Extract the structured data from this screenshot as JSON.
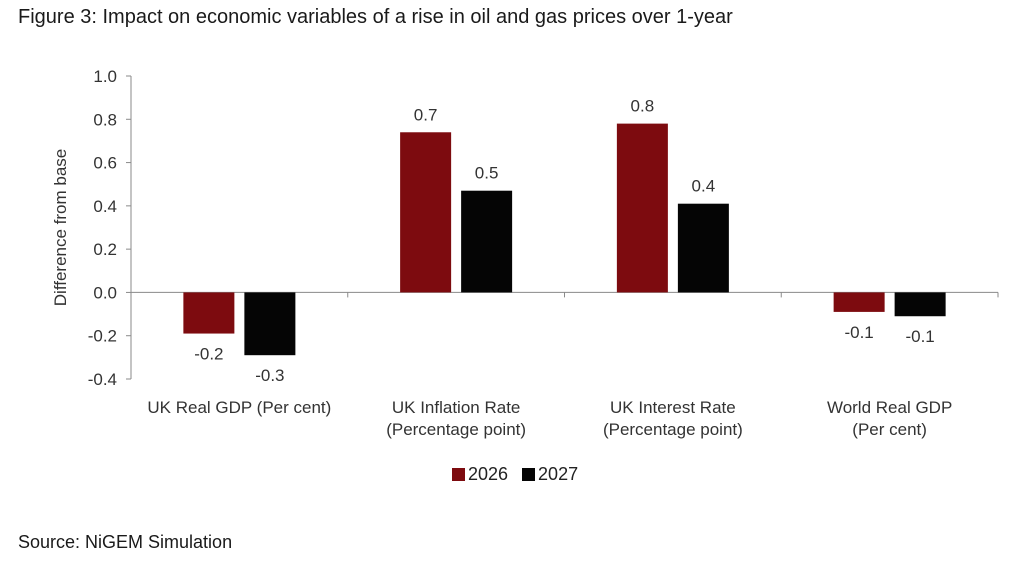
{
  "figure_title": "Figure 3: Impact on economic variables of a rise in oil and gas prices over 1-year",
  "source_note": "Source: NiGEM Simulation",
  "colors": {
    "s2026": "#7d0b0f",
    "s2027": "#050505",
    "axis": "#8a8a8a"
  },
  "chart_data": {
    "type": "bar",
    "title": "Figure 3: Impact on economic variables of a rise in oil and gas prices over 1-year",
    "ylabel": "Difference from base",
    "xlabel": "",
    "ylim": [
      -0.4,
      1.0
    ],
    "yticks": [
      1.0,
      0.8,
      0.6,
      0.4,
      0.2,
      0.0,
      -0.2,
      -0.4
    ],
    "ytick_labels": [
      "1.0",
      "0.8",
      "0.6",
      "0.4",
      "0.2",
      "0.0",
      "-0.2",
      "-0.4"
    ],
    "categories": [
      [
        "UK Real GDP (Per cent)"
      ],
      [
        "UK Inflation Rate",
        "(Percentage point)"
      ],
      [
        "UK Interest Rate",
        "(Percentage point)"
      ],
      [
        "World Real GDP",
        "(Per cent)"
      ]
    ],
    "series": [
      {
        "name": "2026",
        "values": [
          -0.19,
          0.74,
          0.78,
          -0.09
        ],
        "labels": [
          "-0.2",
          "0.7",
          "0.8",
          "-0.1"
        ]
      },
      {
        "name": "2027",
        "values": [
          -0.29,
          0.47,
          0.41,
          -0.11
        ],
        "labels": [
          "-0.3",
          "0.5",
          "0.4",
          "-0.1"
        ]
      }
    ],
    "legend": {
      "position": "bottom-center"
    }
  }
}
